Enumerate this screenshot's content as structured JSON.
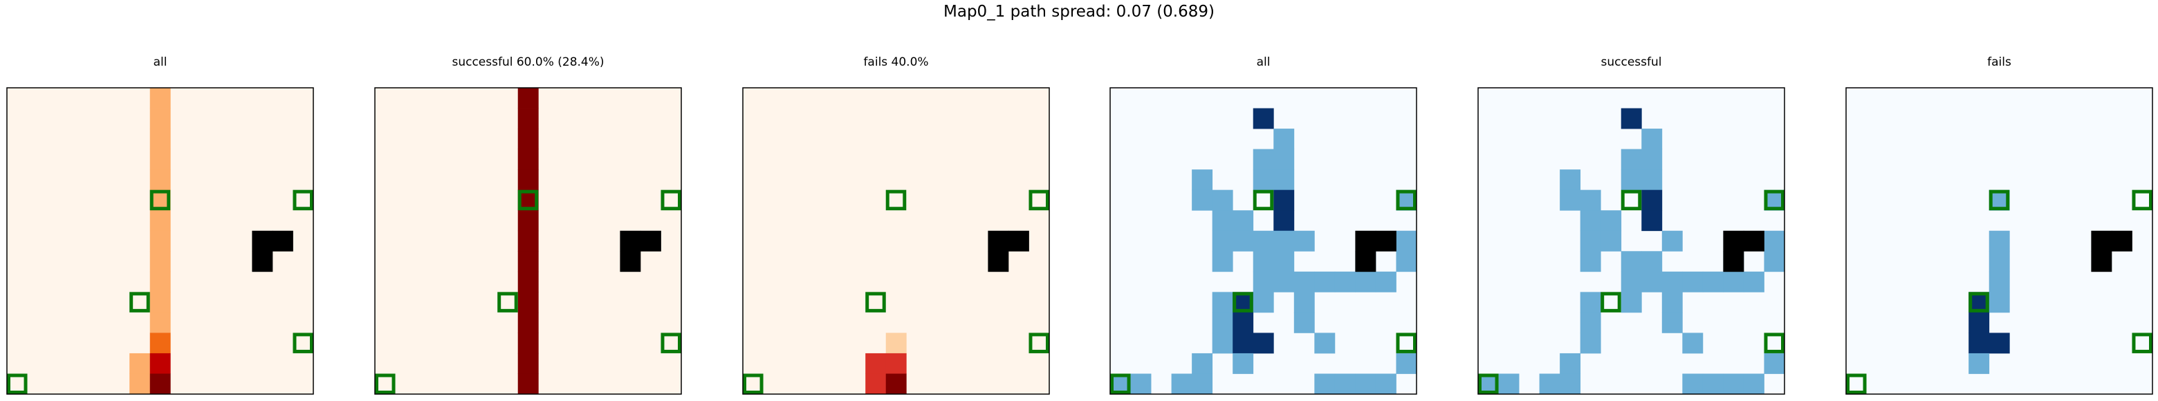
{
  "suptitle": "Map0_1 path spread: 0.07 (0.689)",
  "chart_data": [
    {
      "type": "heatmap",
      "title": "all",
      "colormap": "Oranges",
      "grid": false,
      "cells": [
        {
          "row": 0,
          "col": 7,
          "value": 0.35
        },
        {
          "row": 1,
          "col": 7,
          "value": 0.35
        },
        {
          "row": 2,
          "col": 7,
          "value": 0.35
        },
        {
          "row": 3,
          "col": 7,
          "value": 0.35
        },
        {
          "row": 4,
          "col": 7,
          "value": 0.35
        },
        {
          "row": 5,
          "col": 7,
          "value": 0.35
        },
        {
          "row": 6,
          "col": 7,
          "value": 0.35
        },
        {
          "row": 7,
          "col": 7,
          "value": 0.35
        },
        {
          "row": 8,
          "col": 7,
          "value": 0.35
        },
        {
          "row": 9,
          "col": 7,
          "value": 0.35
        },
        {
          "row": 10,
          "col": 7,
          "value": 0.35
        },
        {
          "row": 11,
          "col": 7,
          "value": 0.35
        },
        {
          "row": 12,
          "col": 7,
          "value": 0.5
        },
        {
          "row": 13,
          "col": 6,
          "value": 0.35
        },
        {
          "row": 13,
          "col": 7,
          "value": 0.85
        },
        {
          "row": 14,
          "col": 6,
          "value": 0.35
        },
        {
          "row": 14,
          "col": 7,
          "value": 1.0
        }
      ],
      "obstacles": [
        [
          7,
          12
        ],
        [
          7,
          13
        ],
        [
          8,
          12
        ]
      ],
      "markers": [
        [
          5,
          7
        ],
        [
          5,
          14
        ],
        [
          10,
          6
        ],
        [
          12,
          14
        ],
        [
          14,
          0
        ]
      ]
    },
    {
      "type": "heatmap",
      "title": "successful 60.0% (28.4%)",
      "colormap": "Oranges",
      "grid": false,
      "cells": [
        {
          "row": 0,
          "col": 7,
          "value": 1.0
        },
        {
          "row": 1,
          "col": 7,
          "value": 1.0
        },
        {
          "row": 2,
          "col": 7,
          "value": 1.0
        },
        {
          "row": 3,
          "col": 7,
          "value": 1.0
        },
        {
          "row": 4,
          "col": 7,
          "value": 1.0
        },
        {
          "row": 5,
          "col": 7,
          "value": 1.0
        },
        {
          "row": 6,
          "col": 7,
          "value": 1.0
        },
        {
          "row": 7,
          "col": 7,
          "value": 1.0
        },
        {
          "row": 8,
          "col": 7,
          "value": 1.0
        },
        {
          "row": 9,
          "col": 7,
          "value": 1.0
        },
        {
          "row": 10,
          "col": 7,
          "value": 1.0
        },
        {
          "row": 11,
          "col": 7,
          "value": 1.0
        },
        {
          "row": 12,
          "col": 7,
          "value": 1.0
        },
        {
          "row": 13,
          "col": 7,
          "value": 1.0
        },
        {
          "row": 14,
          "col": 7,
          "value": 1.0
        }
      ],
      "obstacles": [
        [
          7,
          12
        ],
        [
          7,
          13
        ],
        [
          8,
          12
        ]
      ],
      "markers": [
        [
          5,
          7
        ],
        [
          5,
          14
        ],
        [
          10,
          6
        ],
        [
          12,
          14
        ],
        [
          14,
          0
        ]
      ]
    },
    {
      "type": "heatmap",
      "title": "fails 40.0%",
      "colormap": "Oranges",
      "grid": false,
      "cells": [
        {
          "row": 12,
          "col": 7,
          "value": 0.25
        },
        {
          "row": 13,
          "col": 6,
          "value": 0.7
        },
        {
          "row": 13,
          "col": 7,
          "value": 0.7
        },
        {
          "row": 14,
          "col": 6,
          "value": 0.7
        },
        {
          "row": 14,
          "col": 7,
          "value": 1.0
        }
      ],
      "obstacles": [
        [
          7,
          12
        ],
        [
          7,
          13
        ],
        [
          8,
          12
        ]
      ],
      "markers": [
        [
          5,
          7
        ],
        [
          5,
          14
        ],
        [
          10,
          6
        ],
        [
          12,
          14
        ],
        [
          14,
          0
        ]
      ]
    },
    {
      "type": "heatmap",
      "title": "all",
      "colormap": "Blues",
      "grid": false,
      "cells": [
        {
          "row": 1,
          "col": 7,
          "value": 1.0
        },
        {
          "row": 2,
          "col": 8,
          "value": 0.5
        },
        {
          "row": 3,
          "col": 7,
          "value": 0.5
        },
        {
          "row": 3,
          "col": 8,
          "value": 0.5
        },
        {
          "row": 4,
          "col": 4,
          "value": 0.5
        },
        {
          "row": 4,
          "col": 7,
          "value": 0.5
        },
        {
          "row": 4,
          "col": 8,
          "value": 0.5
        },
        {
          "row": 5,
          "col": 4,
          "value": 0.5
        },
        {
          "row": 5,
          "col": 5,
          "value": 0.5
        },
        {
          "row": 5,
          "col": 8,
          "value": 1.0
        },
        {
          "row": 5,
          "col": 14,
          "value": 0.5
        },
        {
          "row": 6,
          "col": 5,
          "value": 0.5
        },
        {
          "row": 6,
          "col": 6,
          "value": 0.5
        },
        {
          "row": 6,
          "col": 8,
          "value": 1.0
        },
        {
          "row": 7,
          "col": 5,
          "value": 0.5
        },
        {
          "row": 7,
          "col": 6,
          "value": 0.5
        },
        {
          "row": 7,
          "col": 7,
          "value": 0.5
        },
        {
          "row": 7,
          "col": 8,
          "value": 0.5
        },
        {
          "row": 7,
          "col": 9,
          "value": 0.5
        },
        {
          "row": 7,
          "col": 14,
          "value": 0.5
        },
        {
          "row": 8,
          "col": 5,
          "value": 0.5
        },
        {
          "row": 8,
          "col": 7,
          "value": 0.5
        },
        {
          "row": 8,
          "col": 8,
          "value": 0.5
        },
        {
          "row": 8,
          "col": 12,
          "value": 0.5
        },
        {
          "row": 8,
          "col": 14,
          "value": 0.5
        },
        {
          "row": 9,
          "col": 7,
          "value": 0.5
        },
        {
          "row": 9,
          "col": 8,
          "value": 0.5
        },
        {
          "row": 9,
          "col": 9,
          "value": 0.5
        },
        {
          "row": 9,
          "col": 10,
          "value": 0.5
        },
        {
          "row": 9,
          "col": 11,
          "value": 0.5
        },
        {
          "row": 9,
          "col": 12,
          "value": 0.5
        },
        {
          "row": 9,
          "col": 13,
          "value": 0.5
        },
        {
          "row": 10,
          "col": 5,
          "value": 0.5
        },
        {
          "row": 10,
          "col": 6,
          "value": 1.0
        },
        {
          "row": 10,
          "col": 7,
          "value": 0.5
        },
        {
          "row": 10,
          "col": 9,
          "value": 0.5
        },
        {
          "row": 11,
          "col": 5,
          "value": 0.5
        },
        {
          "row": 11,
          "col": 6,
          "value": 1.0
        },
        {
          "row": 11,
          "col": 9,
          "value": 0.5
        },
        {
          "row": 12,
          "col": 5,
          "value": 0.5
        },
        {
          "row": 12,
          "col": 6,
          "value": 1.0
        },
        {
          "row": 12,
          "col": 7,
          "value": 1.0
        },
        {
          "row": 12,
          "col": 10,
          "value": 0.5
        },
        {
          "row": 13,
          "col": 4,
          "value": 0.5
        },
        {
          "row": 13,
          "col": 6,
          "value": 0.5
        },
        {
          "row": 13,
          "col": 14,
          "value": 0.5
        },
        {
          "row": 14,
          "col": 0,
          "value": 0.5
        },
        {
          "row": 14,
          "col": 1,
          "value": 0.5
        },
        {
          "row": 14,
          "col": 3,
          "value": 0.5
        },
        {
          "row": 14,
          "col": 4,
          "value": 0.5
        },
        {
          "row": 14,
          "col": 10,
          "value": 0.5
        },
        {
          "row": 14,
          "col": 11,
          "value": 0.5
        },
        {
          "row": 14,
          "col": 12,
          "value": 0.5
        },
        {
          "row": 14,
          "col": 13,
          "value": 0.5
        }
      ],
      "obstacles": [
        [
          7,
          12
        ],
        [
          7,
          13
        ],
        [
          8,
          12
        ]
      ],
      "markers": [
        [
          5,
          7
        ],
        [
          5,
          14
        ],
        [
          10,
          6
        ],
        [
          12,
          14
        ],
        [
          14,
          0
        ]
      ]
    },
    {
      "type": "heatmap",
      "title": "successful",
      "colormap": "Blues",
      "grid": false,
      "cells": [
        {
          "row": 1,
          "col": 7,
          "value": 1.0
        },
        {
          "row": 2,
          "col": 8,
          "value": 0.5
        },
        {
          "row": 3,
          "col": 7,
          "value": 0.5
        },
        {
          "row": 3,
          "col": 8,
          "value": 0.5
        },
        {
          "row": 4,
          "col": 4,
          "value": 0.5
        },
        {
          "row": 4,
          "col": 7,
          "value": 0.5
        },
        {
          "row": 4,
          "col": 8,
          "value": 0.5
        },
        {
          "row": 5,
          "col": 4,
          "value": 0.5
        },
        {
          "row": 5,
          "col": 5,
          "value": 0.5
        },
        {
          "row": 5,
          "col": 8,
          "value": 1.0
        },
        {
          "row": 5,
          "col": 14,
          "value": 0.5
        },
        {
          "row": 6,
          "col": 5,
          "value": 0.5
        },
        {
          "row": 6,
          "col": 6,
          "value": 0.5
        },
        {
          "row": 6,
          "col": 8,
          "value": 1.0
        },
        {
          "row": 7,
          "col": 5,
          "value": 0.5
        },
        {
          "row": 7,
          "col": 6,
          "value": 0.5
        },
        {
          "row": 7,
          "col": 9,
          "value": 0.5
        },
        {
          "row": 7,
          "col": 14,
          "value": 0.5
        },
        {
          "row": 8,
          "col": 5,
          "value": 0.5
        },
        {
          "row": 8,
          "col": 7,
          "value": 0.5
        },
        {
          "row": 8,
          "col": 8,
          "value": 0.5
        },
        {
          "row": 8,
          "col": 12,
          "value": 0.5
        },
        {
          "row": 8,
          "col": 14,
          "value": 0.5
        },
        {
          "row": 9,
          "col": 7,
          "value": 0.5
        },
        {
          "row": 9,
          "col": 8,
          "value": 0.5
        },
        {
          "row": 9,
          "col": 9,
          "value": 0.5
        },
        {
          "row": 9,
          "col": 10,
          "value": 0.5
        },
        {
          "row": 9,
          "col": 11,
          "value": 0.5
        },
        {
          "row": 9,
          "col": 12,
          "value": 0.5
        },
        {
          "row": 9,
          "col": 13,
          "value": 0.5
        },
        {
          "row": 10,
          "col": 5,
          "value": 0.5
        },
        {
          "row": 10,
          "col": 7,
          "value": 0.5
        },
        {
          "row": 10,
          "col": 9,
          "value": 0.5
        },
        {
          "row": 11,
          "col": 5,
          "value": 0.5
        },
        {
          "row": 11,
          "col": 9,
          "value": 0.5
        },
        {
          "row": 12,
          "col": 5,
          "value": 0.5
        },
        {
          "row": 12,
          "col": 10,
          "value": 0.5
        },
        {
          "row": 13,
          "col": 4,
          "value": 0.5
        },
        {
          "row": 13,
          "col": 14,
          "value": 0.5
        },
        {
          "row": 14,
          "col": 0,
          "value": 0.5
        },
        {
          "row": 14,
          "col": 1,
          "value": 0.5
        },
        {
          "row": 14,
          "col": 3,
          "value": 0.5
        },
        {
          "row": 14,
          "col": 4,
          "value": 0.5
        },
        {
          "row": 14,
          "col": 10,
          "value": 0.5
        },
        {
          "row": 14,
          "col": 11,
          "value": 0.5
        },
        {
          "row": 14,
          "col": 12,
          "value": 0.5
        },
        {
          "row": 14,
          "col": 13,
          "value": 0.5
        }
      ],
      "obstacles": [
        [
          7,
          12
        ],
        [
          7,
          13
        ],
        [
          8,
          12
        ]
      ],
      "markers": [
        [
          5,
          7
        ],
        [
          5,
          14
        ],
        [
          10,
          6
        ],
        [
          12,
          14
        ],
        [
          14,
          0
        ]
      ]
    },
    {
      "type": "heatmap",
      "title": "fails",
      "colormap": "Blues",
      "grid": false,
      "cells": [
        {
          "row": 5,
          "col": 7,
          "value": 0.5
        },
        {
          "row": 7,
          "col": 7,
          "value": 0.5
        },
        {
          "row": 8,
          "col": 7,
          "value": 0.5
        },
        {
          "row": 9,
          "col": 7,
          "value": 0.5
        },
        {
          "row": 10,
          "col": 6,
          "value": 1.0
        },
        {
          "row": 10,
          "col": 7,
          "value": 0.5
        },
        {
          "row": 11,
          "col": 6,
          "value": 1.0
        },
        {
          "row": 12,
          "col": 6,
          "value": 1.0
        },
        {
          "row": 12,
          "col": 7,
          "value": 1.0
        },
        {
          "row": 13,
          "col": 6,
          "value": 0.5
        }
      ],
      "obstacles": [
        [
          7,
          12
        ],
        [
          7,
          13
        ],
        [
          8,
          12
        ]
      ],
      "markers": [
        [
          5,
          7
        ],
        [
          5,
          14
        ],
        [
          10,
          6
        ],
        [
          12,
          14
        ],
        [
          14,
          0
        ]
      ]
    }
  ]
}
